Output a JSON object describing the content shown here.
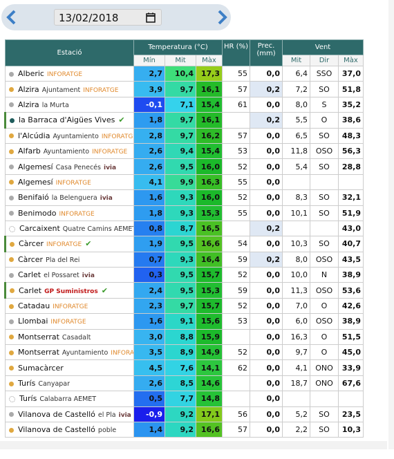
{
  "date": "13/02/2018",
  "header": {
    "station": "Estació",
    "temp": "Temperatura (°C)",
    "hr": "HR (%)",
    "prec": "Prec. (mm)",
    "wind": "Vent",
    "min": "Mín",
    "mit": "Mit",
    "max": "Màx",
    "wmit": "Mit",
    "dir": "Dir",
    "wmax": "Màx"
  },
  "rows": [
    {
      "name": "Alberic",
      "source": "INFORATGE",
      "dot": "#aaaaaa",
      "min": "2,7",
      "mit": "10,4",
      "max": "17,3",
      "hr": "55",
      "prec": "0,0",
      "wmit": "6,4",
      "dir": "SSO",
      "wmax": "37,0"
    },
    {
      "name": "Alzira",
      "sub": "Ajuntament",
      "source": "INFORATGE",
      "dot": "#e0a840",
      "min": "3,9",
      "mit": "9,7",
      "max": "16,1",
      "hr": "57",
      "prec": "0,2",
      "wmit": "7,2",
      "dir": "SO",
      "wmax": "51,8"
    },
    {
      "name": "Alzira",
      "sub": "la Murta",
      "dot": "#aaaaaa",
      "min": "-0,1",
      "mit": "7,1",
      "max": "15,4",
      "hr": "61",
      "prec": "0,0",
      "wmit": "8,0",
      "dir": "S",
      "wmax": "35,2"
    },
    {
      "name": "la Barraca d'Aigües Vives",
      "dot": "#1f5c5c",
      "check": true,
      "min": "1,8",
      "mit": "9,7",
      "max": "16,1",
      "hr": null,
      "prec": "0,2",
      "wmit": "5,5",
      "dir": "O",
      "wmax": "38,6"
    },
    {
      "name": "l'Alcúdia",
      "sub": "Ayuntamiento",
      "source": "INFORATGE",
      "dot": "#e0a840",
      "min": "2,8",
      "mit": "9,7",
      "max": "16,2",
      "hr": "57",
      "prec": "0,0",
      "wmit": "6,5",
      "dir": "SO",
      "wmax": "48,3"
    },
    {
      "name": "Alfarb",
      "sub": "Ayuntamiento",
      "source": "INFORATGE",
      "dot": "#e0a840",
      "min": "2,6",
      "mit": "9,4",
      "max": "15,4",
      "hr": "53",
      "prec": "0,0",
      "wmit": "11,8",
      "dir": "OSO",
      "wmax": "56,3"
    },
    {
      "name": "Algemesí",
      "sub": "Casa Penecés",
      "source": "ivia",
      "dot": "#aaaaaa",
      "min": "2,6",
      "mit": "9,5",
      "max": "16,0",
      "hr": "52",
      "prec": "0,0",
      "wmit": "5,4",
      "dir": "SO",
      "wmax": "28,8"
    },
    {
      "name": "Algemesí",
      "source": "INFORATGE",
      "dot": "#e0a840",
      "min": "4,1",
      "mit": "9,9",
      "max": "16,3",
      "hr": "55",
      "prec": "0,0",
      "wmit": null,
      "dir": null,
      "wmax": null
    },
    {
      "name": "Benifaió",
      "sub": "la Belenguera",
      "source": "ivia",
      "dot": "#aaaaaa",
      "min": "1,6",
      "mit": "9,3",
      "max": "16,0",
      "hr": "52",
      "prec": "0,0",
      "wmit": "8,3",
      "dir": "SO",
      "wmax": "32,1"
    },
    {
      "name": "Benimodo",
      "source": "INFORATGE",
      "dot": "#aaaaaa",
      "min": "1,8",
      "mit": "9,3",
      "max": "15,3",
      "hr": "55",
      "prec": "0,0",
      "wmit": "10,1",
      "dir": "SO",
      "wmax": "51,9"
    },
    {
      "name": "Carcaixent",
      "sub": "Quatre Camins AEMET",
      "dot": "dotted",
      "min": "0,8",
      "mit": "8,7",
      "max": "16,5",
      "hr": null,
      "prec": "0,2",
      "wmit": null,
      "dir": null,
      "wmax": "43,0"
    },
    {
      "name": "Càrcer",
      "source": "INFORATGE",
      "dot": "#e0a840",
      "check": true,
      "min": "1,9",
      "mit": "9,5",
      "max": "16,6",
      "hr": "54",
      "prec": "0,0",
      "wmit": "10,3",
      "dir": "SO",
      "wmax": "40,7"
    },
    {
      "name": "Càrcer",
      "sub": "Pla del Rei",
      "dot": "#e0a840",
      "min": "0,7",
      "mit": "9,3",
      "max": "16,4",
      "hr": "59",
      "prec": "0,2",
      "wmit": "8,0",
      "dir": "OSO",
      "wmax": "43,5"
    },
    {
      "name": "Carlet",
      "sub": "el Possaret",
      "source": "ivia",
      "dot": "#aaaaaa",
      "min": "0,3",
      "mit": "9,5",
      "max": "15,7",
      "hr": "52",
      "prec": "0,0",
      "wmit": "10,0",
      "dir": "N",
      "wmax": "38,9"
    },
    {
      "name": "Carlet",
      "source": "GP Suministros",
      "dot": "#e0a840",
      "check": true,
      "min": "2,4",
      "mit": "9,5",
      "max": "15,3",
      "hr": "59",
      "prec": "0,0",
      "wmit": "11,3",
      "dir": "OSO",
      "wmax": "53,6"
    },
    {
      "name": "Catadau",
      "source": "INFORATGE",
      "dot": "#e0a840",
      "min": "2,3",
      "mit": "9,7",
      "max": "15,7",
      "hr": "52",
      "prec": "0,0",
      "wmit": "7,0",
      "dir": "O",
      "wmax": "42,6"
    },
    {
      "name": "Llombai",
      "source": "INFORATGE",
      "dot": "#aaaaaa",
      "min": "1,6",
      "mit": "9,1",
      "max": "15,6",
      "hr": "53",
      "prec": "0,0",
      "wmit": "6,0",
      "dir": "OSO",
      "wmax": "38,9"
    },
    {
      "name": "Montserrat",
      "sub": "Casadalt",
      "dot": "#e0a840",
      "min": "3,0",
      "mit": "8,8",
      "max": "15,9",
      "hr": null,
      "prec": "0,0",
      "wmit": "16,3",
      "dir": "O",
      "wmax": "51,5"
    },
    {
      "name": "Montserrat",
      "sub": "Ayuntamiento",
      "source": "INFORATGE",
      "dot": "#e0a840",
      "min": "3,5",
      "mit": "8,9",
      "max": "14,9",
      "hr": "52",
      "prec": "0,0",
      "wmit": "9,7",
      "dir": "O",
      "wmax": "45,0"
    },
    {
      "name": "Sumacàrcer",
      "dot": "#e0a840",
      "min": "4,5",
      "mit": "7,6",
      "max": "14,1",
      "hr": "62",
      "prec": "0,0",
      "wmit": "4,1",
      "dir": "ONO",
      "wmax": "33,9"
    },
    {
      "name": "Turís",
      "sub": "Canyapar",
      "dot": "#e0a840",
      "min": "2,6",
      "mit": "8,5",
      "max": "14,6",
      "hr": null,
      "prec": "0,0",
      "wmit": "18,7",
      "dir": "ONO",
      "wmax": "67,6"
    },
    {
      "name": "Turís",
      "sub": "Calabarra AEMET",
      "dot": "dotted",
      "min": "0,5",
      "mit": "7,7",
      "max": "14,8",
      "hr": null,
      "prec": "0,0",
      "wmit": null,
      "dir": null,
      "wmax": null
    },
    {
      "name": "Vilanova de Castelló",
      "sub": "el Pla",
      "source": "ivia",
      "dot": "#aaaaaa",
      "min": "-0,9",
      "mit": "9,2",
      "max": "17,1",
      "hr": "56",
      "prec": "0,0",
      "wmit": "5,2",
      "dir": "SO",
      "wmax": "23,5"
    },
    {
      "name": "Vilanova de Castelló",
      "sub": "poble",
      "dot": "#e0a840",
      "min": "1,4",
      "mit": "9,2",
      "max": "16,6",
      "hr": "57",
      "prec": "0,0",
      "wmit": "2,2",
      "dir": "SO",
      "wmax": "10,3"
    }
  ]
}
